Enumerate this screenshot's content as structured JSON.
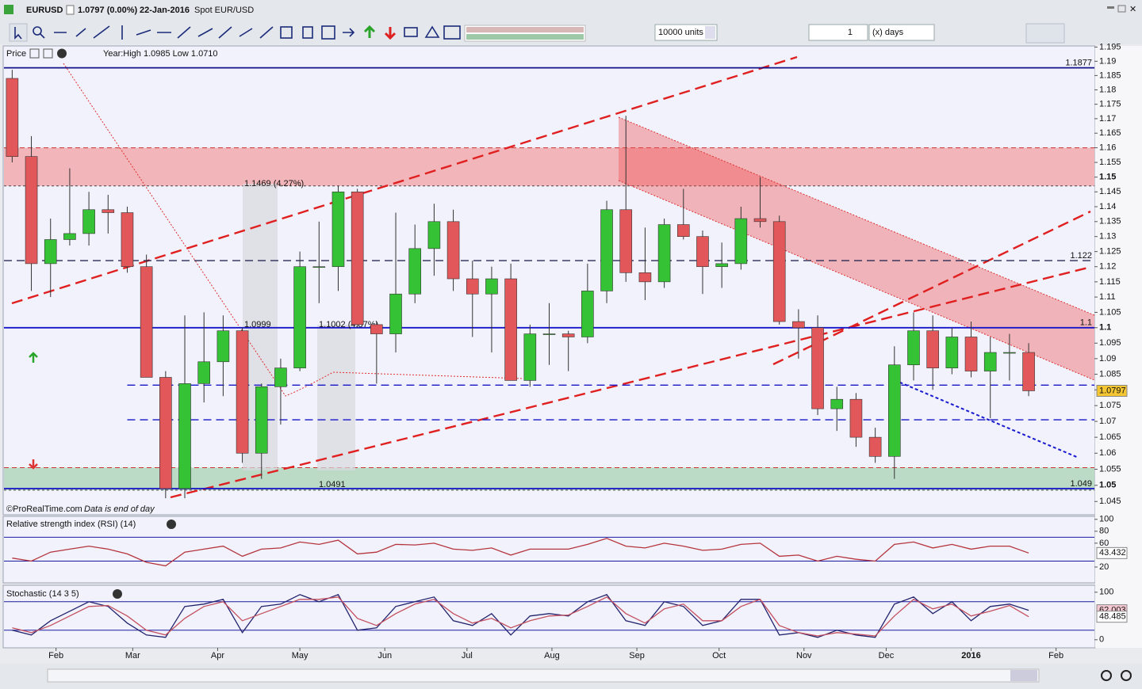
{
  "header": {
    "symbol": "EURUSD",
    "price_change": "1.0797 (0.00%)",
    "date": "22-Jan-2016",
    "description": "Spot EUR/USD"
  },
  "toolbar": {
    "quantity": "10000 units",
    "period_count": "1",
    "period_unit": "(x) days"
  },
  "chart_data": [
    {
      "type": "candlestick",
      "title": "Price",
      "subtitle": "Year:High 1.0985 Low 1.0710",
      "footer": [
        "©ProRealTime.com",
        "Data is end of day"
      ],
      "x": [
        -16,
        -9,
        -2,
        5,
        12,
        19,
        26,
        33,
        40,
        47,
        54,
        61,
        68,
        75,
        82,
        89,
        96,
        103,
        110,
        117,
        124,
        131,
        138,
        145,
        152,
        159,
        166,
        173,
        180,
        187,
        194,
        201,
        208,
        215,
        222,
        229,
        236,
        243,
        250,
        257,
        264,
        271,
        278,
        285,
        292,
        299,
        306,
        313,
        320,
        327,
        334,
        341,
        348,
        355
      ],
      "open": [
        1.184,
        1.157,
        1.121,
        1.129,
        1.131,
        1.139,
        1.138,
        1.12,
        1.084,
        1.049,
        1.082,
        1.089,
        1.099,
        1.06,
        1.081,
        1.087,
        1.12,
        1.12,
        1.145,
        1.101,
        1.098,
        1.111,
        1.126,
        1.135,
        1.116,
        1.111,
        1.116,
        1.083,
        1.098,
        1.098,
        1.097,
        1.112,
        1.139,
        1.118,
        1.115,
        1.134,
        1.13,
        1.12,
        1.121,
        1.136,
        1.135,
        1.102,
        1.1,
        1.074,
        1.077,
        1.065,
        1.059,
        1.088,
        1.099,
        1.087,
        1.097,
        1.086,
        1.092,
        1.092
      ],
      "high": [
        1.187,
        1.164,
        1.136,
        1.153,
        1.145,
        1.144,
        1.14,
        1.124,
        1.086,
        1.104,
        1.105,
        1.104,
        1.1,
        1.082,
        1.09,
        1.125,
        1.135,
        1.147,
        1.146,
        1.102,
        1.138,
        1.134,
        1.141,
        1.139,
        1.122,
        1.12,
        1.121,
        1.101,
        1.108,
        1.099,
        1.121,
        1.142,
        1.171,
        1.133,
        1.136,
        1.146,
        1.132,
        1.128,
        1.14,
        1.15,
        1.137,
        1.106,
        1.104,
        1.081,
        1.079,
        1.068,
        1.094,
        1.105,
        1.104,
        1.1,
        1.102,
        1.097,
        1.098,
        1.095
      ],
      "low": [
        1.155,
        1.112,
        1.11,
        1.127,
        1.127,
        1.131,
        1.118,
        1.084,
        1.046,
        1.046,
        1.076,
        1.078,
        1.057,
        1.052,
        1.069,
        1.086,
        1.108,
        1.112,
        1.1,
        1.082,
        1.092,
        1.108,
        1.117,
        1.112,
        1.097,
        1.092,
        1.083,
        1.081,
        1.088,
        1.086,
        1.095,
        1.108,
        1.115,
        1.109,
        1.113,
        1.129,
        1.111,
        1.113,
        1.119,
        1.133,
        1.101,
        1.09,
        1.072,
        1.067,
        1.062,
        1.057,
        1.052,
        1.083,
        1.08,
        1.085,
        1.084,
        1.071,
        1.083,
        1.078
      ],
      "close": [
        1.157,
        1.121,
        1.129,
        1.131,
        1.139,
        1.138,
        1.12,
        1.084,
        1.049,
        1.082,
        1.089,
        1.099,
        1.06,
        1.081,
        1.087,
        1.12,
        1.12,
        1.145,
        1.101,
        1.098,
        1.111,
        1.126,
        1.135,
        1.116,
        1.111,
        1.116,
        1.083,
        1.098,
        1.098,
        1.097,
        1.112,
        1.139,
        1.118,
        1.115,
        1.134,
        1.13,
        1.12,
        1.121,
        1.136,
        1.135,
        1.102,
        1.1,
        1.074,
        1.077,
        1.065,
        1.059,
        1.088,
        1.099,
        1.087,
        1.097,
        1.086,
        1.092,
        1.092,
        1.0797
      ],
      "up_color": "#35c235",
      "down_color": "#e2575a",
      "xlim": [
        -19,
        379
      ],
      "xticks": [
        {
          "value": 0,
          "label": "Feb"
        },
        {
          "value": 28,
          "label": "Mar"
        },
        {
          "value": 59,
          "label": "Apr"
        },
        {
          "value": 89,
          "label": "May"
        },
        {
          "value": 120,
          "label": "Jun"
        },
        {
          "value": 150,
          "label": "Jul"
        },
        {
          "value": 181,
          "label": "Aug"
        },
        {
          "value": 212,
          "label": "Sep"
        },
        {
          "value": 242,
          "label": "Oct"
        },
        {
          "value": 273,
          "label": "Nov"
        },
        {
          "value": 303,
          "label": "Dec"
        },
        {
          "value": 334,
          "label": "2016"
        },
        {
          "value": 365,
          "label": "Feb"
        }
      ],
      "ylim": [
        1.0453,
        1.1954
      ],
      "log": true,
      "yticks": [
        1.045,
        1.05,
        1.055,
        1.06,
        1.065,
        1.07,
        1.075,
        1.08,
        1.085,
        1.09,
        1.095,
        1.1,
        1.105,
        1.11,
        1.115,
        1.12,
        1.125,
        1.13,
        1.135,
        1.14,
        1.145,
        1.15,
        1.155,
        1.16,
        1.165,
        1.17,
        1.175,
        1.18,
        1.185,
        1.19,
        1.195
      ],
      "zones": [
        {
          "from": 1.147,
          "to": 1.16,
          "color": "#f2a0a3"
        },
        {
          "from": 1.0485,
          "to": 1.0555,
          "color": "#a9d3b4"
        }
      ],
      "levels": [
        {
          "value": 1.1877,
          "color": "#12128a",
          "dashed": false,
          "show_label": true
        },
        {
          "value": 1.122,
          "color": "#2a2a55",
          "dashed": true,
          "show_label": true
        },
        {
          "value": 1.1,
          "color": "#1616c8",
          "dashed": false,
          "show_label": true
        },
        {
          "value": 1.0815,
          "color": "#1616c8",
          "dashed": true,
          "show_label": false,
          "x0": 26
        },
        {
          "value": 1.0705,
          "color": "#1616c8",
          "dashed": true,
          "show_label": false,
          "x0": 26
        },
        {
          "value": 1.049,
          "color": "#1616c8",
          "dashed": false,
          "show_label": true
        }
      ],
      "annotations": [
        "1.1469 (4.27%)",
        "1.0999",
        "1.1002 (4.87%)",
        "1.0491"
      ],
      "tag_color": "#f3c632"
    },
    {
      "type": "line",
      "title": "Relative strength index (RSI) (14)",
      "x": [
        -16,
        -9,
        -2,
        5,
        12,
        19,
        26,
        33,
        40,
        47,
        54,
        61,
        68,
        75,
        82,
        89,
        96,
        103,
        110,
        117,
        124,
        131,
        138,
        145,
        152,
        159,
        166,
        173,
        180,
        187,
        194,
        201,
        208,
        215,
        222,
        229,
        236,
        243,
        250,
        257,
        264,
        271,
        278,
        285,
        292,
        299,
        306,
        313,
        320,
        327,
        334,
        341,
        348,
        355
      ],
      "values": [
        35,
        30,
        45,
        50,
        55,
        50,
        42,
        28,
        22,
        45,
        50,
        55,
        38,
        50,
        52,
        62,
        58,
        65,
        42,
        45,
        58,
        57,
        60,
        50,
        48,
        52,
        40,
        50,
        50,
        50,
        58,
        68,
        55,
        52,
        60,
        55,
        48,
        50,
        58,
        60,
        38,
        40,
        30,
        38,
        33,
        30,
        58,
        62,
        52,
        58,
        50,
        55,
        55,
        43.432
      ],
      "color": "#b5343d",
      "ylim": [
        12,
        105
      ],
      "yticks": [
        20,
        60,
        80,
        100
      ],
      "levels": [
        30,
        70
      ],
      "level_color": "#1a1aa0",
      "tag_color": "#ffffff"
    },
    {
      "type": "line",
      "title": "Stochastic (14 3 5)",
      "x": [
        -16,
        -9,
        -2,
        5,
        12,
        19,
        26,
        33,
        40,
        47,
        54,
        61,
        68,
        75,
        82,
        89,
        96,
        103,
        110,
        117,
        124,
        131,
        138,
        145,
        152,
        159,
        166,
        173,
        180,
        187,
        194,
        201,
        208,
        215,
        222,
        229,
        236,
        243,
        250,
        257,
        264,
        271,
        278,
        285,
        292,
        299,
        306,
        313,
        320,
        327,
        334,
        341,
        348,
        355
      ],
      "series": [
        {
          "color": "#23236e",
          "values": [
            20,
            10,
            40,
            60,
            80,
            70,
            35,
            10,
            5,
            70,
            75,
            85,
            15,
            70,
            75,
            95,
            80,
            95,
            20,
            25,
            70,
            80,
            90,
            40,
            30,
            55,
            10,
            50,
            55,
            50,
            80,
            95,
            40,
            30,
            80,
            70,
            30,
            40,
            85,
            85,
            10,
            15,
            5,
            20,
            10,
            5,
            75,
            90,
            55,
            80,
            40,
            70,
            75,
            62.003
          ],
          "tag_color": "#f6c9d3"
        },
        {
          "color": "#c4505f",
          "values": [
            25,
            15,
            30,
            50,
            70,
            72,
            50,
            20,
            10,
            45,
            70,
            80,
            40,
            55,
            70,
            85,
            85,
            90,
            45,
            30,
            55,
            75,
            85,
            55,
            35,
            45,
            25,
            40,
            50,
            52,
            70,
            90,
            55,
            35,
            65,
            75,
            40,
            40,
            70,
            85,
            30,
            15,
            8,
            15,
            12,
            8,
            50,
            85,
            65,
            75,
            50,
            60,
            72,
            48.485
          ],
          "tag_color": "#ffffff"
        }
      ],
      "ylim": [
        -12,
        113
      ],
      "yticks": [
        0,
        100
      ],
      "levels": [
        20,
        80
      ],
      "level_color": "#1a1aa0"
    }
  ]
}
